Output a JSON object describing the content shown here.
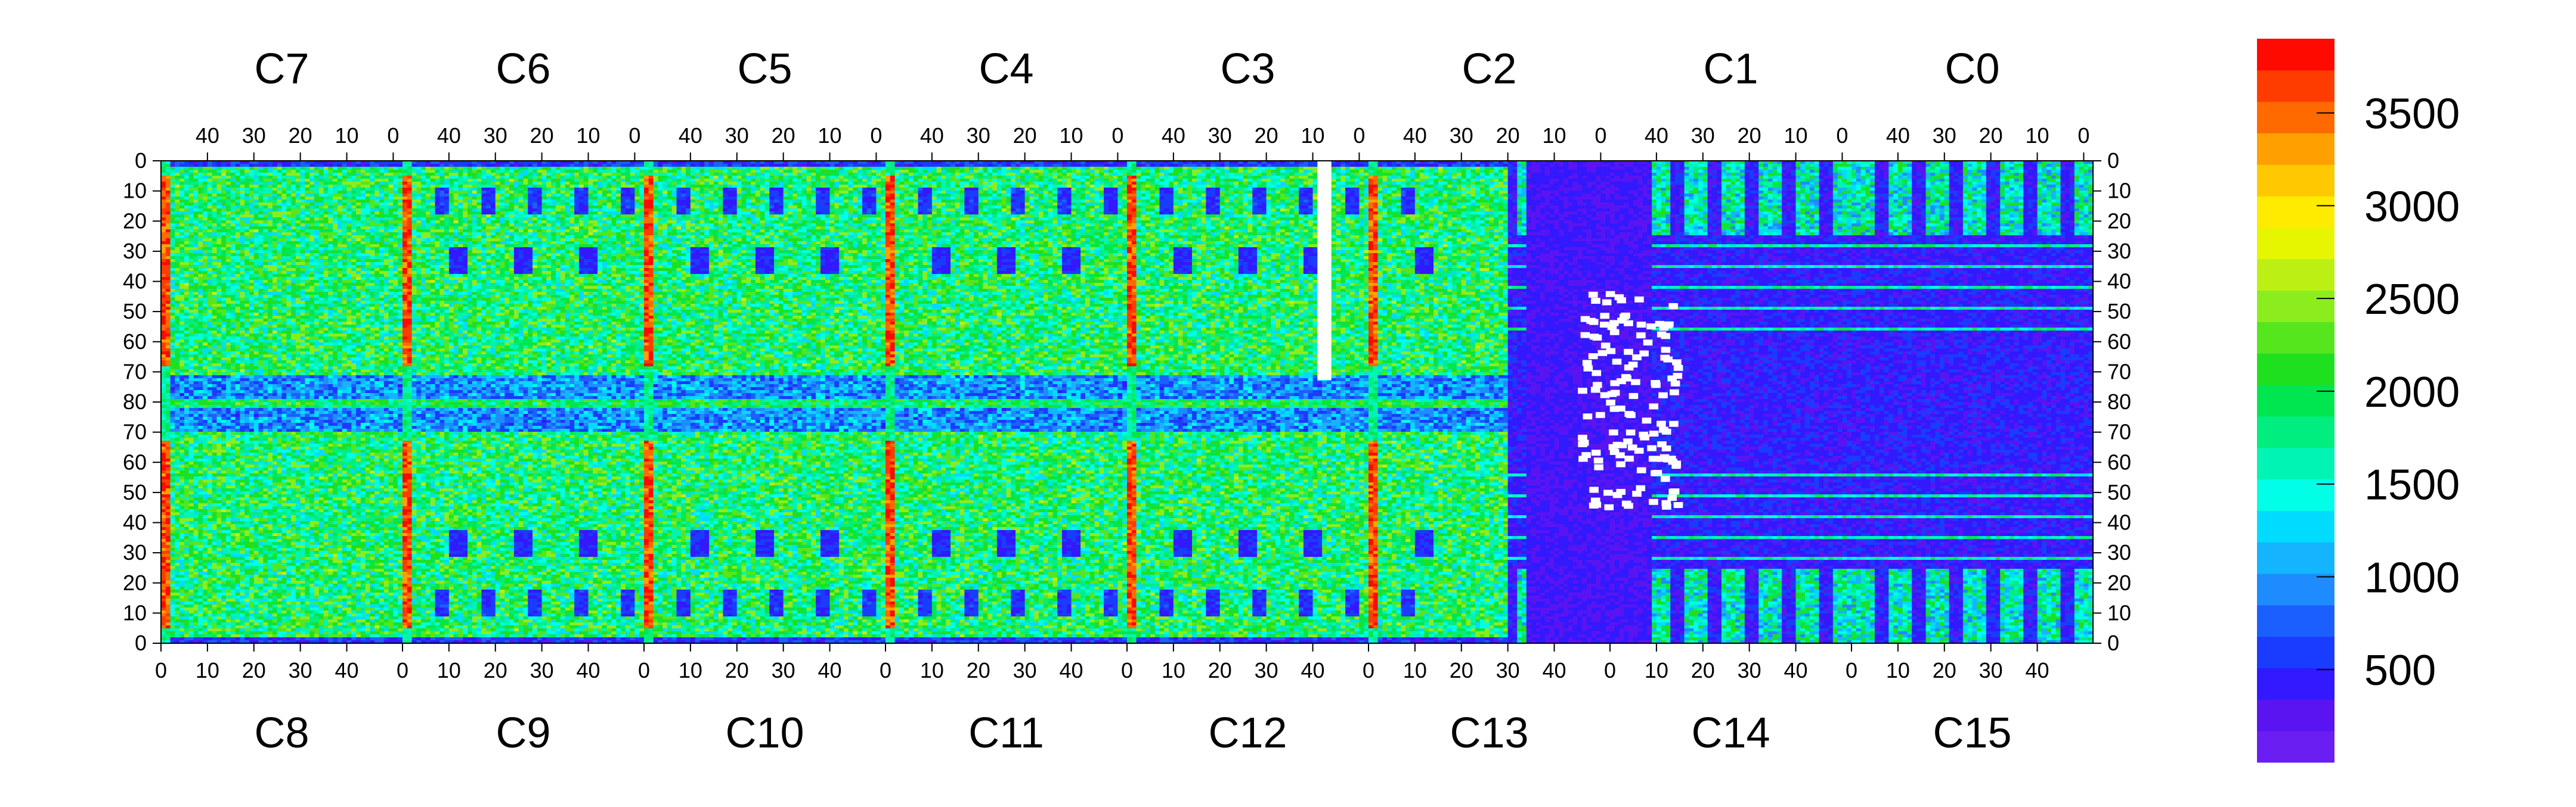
{
  "chart_data": {
    "type": "heatmap",
    "title": "",
    "xlabel": "",
    "ylabel": "",
    "grid": false,
    "chips": {
      "top": [
        "C7",
        "C6",
        "C5",
        "C4",
        "C3",
        "C2",
        "C1",
        "C0"
      ],
      "bottom": [
        "C8",
        "C9",
        "C10",
        "C11",
        "C12",
        "C13",
        "C14",
        "C15"
      ]
    },
    "x_ticks_top": [
      [
        "40",
        "30",
        "20",
        "10",
        "0"
      ],
      [
        "40",
        "30",
        "20",
        "10",
        "0"
      ],
      [
        "40",
        "30",
        "20",
        "10",
        "0"
      ],
      [
        "40",
        "30",
        "20",
        "10",
        "0"
      ],
      [
        "40",
        "30",
        "20",
        "10",
        "0"
      ],
      [
        "40",
        "30",
        "20",
        "10",
        "0"
      ],
      [
        "40",
        "30",
        "20",
        "10",
        "0"
      ],
      [
        "40",
        "30",
        "20",
        "10",
        "0"
      ]
    ],
    "x_ticks_bottom": [
      [
        "0",
        "10",
        "20",
        "30",
        "40"
      ],
      [
        "0",
        "10",
        "20",
        "30",
        "40"
      ],
      [
        "0",
        "10",
        "20",
        "30",
        "40"
      ],
      [
        "0",
        "10",
        "20",
        "30",
        "40"
      ],
      [
        "0",
        "10",
        "20",
        "30",
        "40"
      ],
      [
        "0",
        "10",
        "20",
        "30",
        "40"
      ],
      [
        "0",
        "10",
        "20",
        "30",
        "40"
      ],
      [
        "0",
        "10",
        "20",
        "30",
        "40"
      ]
    ],
    "y_ticks": [
      "0",
      "10",
      "20",
      "30",
      "40",
      "50",
      "60",
      "70",
      "80",
      "70",
      "60",
      "50",
      "40",
      "30",
      "20",
      "10",
      "0"
    ],
    "colorbar": {
      "zlim": [
        0,
        3900
      ],
      "tick_labels": [
        "500",
        "1000",
        "1500",
        "2000",
        "2500",
        "3000",
        "3500"
      ],
      "tick_values": [
        500,
        1000,
        1500,
        2000,
        2500,
        3000,
        3500
      ],
      "colors": [
        "#6a1ef2",
        "#5a14f2",
        "#3219ff",
        "#1a3cff",
        "#1c5fff",
        "#1e8cff",
        "#14b4ff",
        "#00dcff",
        "#00ffe6",
        "#00f5b4",
        "#00ee80",
        "#00e650",
        "#1fe01e",
        "#55e61e",
        "#8ced1e",
        "#bcf014",
        "#e6f500",
        "#ffeb00",
        "#ffc800",
        "#ffa000",
        "#ff6a00",
        "#ff3c00",
        "#ff0a00"
      ]
    },
    "features": {
      "bright_columns_chip_local_x": [
        0
      ],
      "background_level": 1900,
      "lower_right_level": 250,
      "dead_column": {
        "chip": "C3",
        "x": 10,
        "y_range_top": [
          0,
          80
        ]
      },
      "hot_spot_counts": [
        3600,
        3800
      ]
    }
  }
}
